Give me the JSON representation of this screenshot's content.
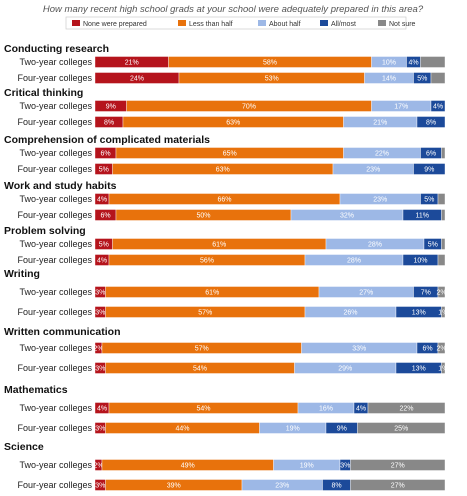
{
  "chart_data": {
    "type": "bar",
    "orientation": "horizontal",
    "stacked": true,
    "title": "How many recent high school grads at your school were adequately prepared in this area?",
    "legend": {
      "placement": "top",
      "entries": [
        {
          "name": "None were prepared",
          "color": "#b5141c"
        },
        {
          "name": "Less than half",
          "color": "#e8720c"
        },
        {
          "name": "About half",
          "color": "#9db8e6"
        },
        {
          "name": "All/most",
          "color": "#1c4a9a"
        },
        {
          "name": "Not sure",
          "color": "#888888"
        }
      ]
    },
    "xlim": [
      0,
      100
    ],
    "grid": false,
    "groups": [
      {
        "name": "Conducting research",
        "rows": [
          {
            "label": "Two-year colleges",
            "values": [
              21,
              58,
              10,
              4,
              7
            ],
            "labels": [
              "21%",
              "58%",
              "10%",
              "4%",
              ""
            ]
          },
          {
            "label": "Four-year colleges",
            "values": [
              24,
              53,
              14,
              5,
              4
            ],
            "labels": [
              "24%",
              "53%",
              "14%",
              "5%",
              ""
            ]
          }
        ]
      },
      {
        "name": "Critical thinking",
        "rows": [
          {
            "label": "Two-year colleges",
            "values": [
              9,
              70,
              17,
              4,
              0
            ],
            "labels": [
              "9%",
              "70%",
              "17%",
              "4%",
              ""
            ]
          },
          {
            "label": "Four-year colleges",
            "values": [
              8,
              63,
              21,
              8,
              0
            ],
            "labels": [
              "8%",
              "63%",
              "21%",
              "8%",
              ""
            ]
          }
        ]
      },
      {
        "name": "Comprehension of complicated materials",
        "rows": [
          {
            "label": "Two-year colleges",
            "values": [
              6,
              65,
              22,
              6,
              1
            ],
            "labels": [
              "6%",
              "65%",
              "22%",
              "6%",
              ""
            ]
          },
          {
            "label": "Four-year colleges",
            "values": [
              5,
              63,
              23,
              9,
              0
            ],
            "labels": [
              "5%",
              "63%",
              "23%",
              "9%",
              ""
            ]
          }
        ]
      },
      {
        "name": "Work and study habits",
        "rows": [
          {
            "label": "Two-year colleges",
            "values": [
              4,
              66,
              23,
              5,
              2
            ],
            "labels": [
              "4%",
              "66%",
              "23%",
              "5%",
              ""
            ]
          },
          {
            "label": "Four-year colleges",
            "values": [
              6,
              50,
              32,
              11,
              1
            ],
            "labels": [
              "6%",
              "50%",
              "32%",
              "11%",
              ""
            ]
          }
        ]
      },
      {
        "name": "Problem solving",
        "rows": [
          {
            "label": "Two-year colleges",
            "values": [
              5,
              61,
              28,
              5,
              1
            ],
            "labels": [
              "5%",
              "61%",
              "28%",
              "5%",
              ""
            ]
          },
          {
            "label": "Four-year colleges",
            "values": [
              4,
              56,
              28,
              10,
              2
            ],
            "labels": [
              "4%",
              "56%",
              "28%",
              "10%",
              ""
            ]
          }
        ]
      },
      {
        "name": "Writing",
        "rows": [
          {
            "label": "Two-year colleges",
            "values": [
              3,
              61,
              27,
              7,
              2
            ],
            "labels": [
              "3%",
              "61%",
              "27%",
              "7%",
              "2%"
            ]
          },
          {
            "label": "Four-year colleges",
            "values": [
              3,
              57,
              26,
              13,
              1
            ],
            "labels": [
              "3%",
              "57%",
              "26%",
              "13%",
              "1%"
            ]
          }
        ]
      },
      {
        "name": "Written communication",
        "rows": [
          {
            "label": "Two-year colleges",
            "values": [
              2,
              57,
              33,
              6,
              2
            ],
            "labels": [
              "2%",
              "57%",
              "33%",
              "6%",
              "2%"
            ]
          },
          {
            "label": "Four-year colleges",
            "values": [
              3,
              54,
              29,
              13,
              1
            ],
            "labels": [
              "3%",
              "54%",
              "29%",
              "13%",
              "1%"
            ]
          }
        ]
      },
      {
        "name": "Mathematics",
        "rows": [
          {
            "label": "Two-year colleges",
            "values": [
              4,
              54,
              16,
              4,
              22
            ],
            "labels": [
              "4%",
              "54%",
              "16%",
              "4%",
              "22%"
            ]
          },
          {
            "label": "Four-year colleges",
            "values": [
              3,
              44,
              19,
              9,
              25
            ],
            "labels": [
              "3%",
              "44%",
              "19%",
              "9%",
              "25%"
            ]
          }
        ]
      },
      {
        "name": "Science",
        "rows": [
          {
            "label": "Two-year colleges",
            "values": [
              2,
              49,
              19,
              3,
              27
            ],
            "labels": [
              "2%",
              "49%",
              "19%",
              "3%",
              "27%"
            ]
          },
          {
            "label": "Four-year colleges",
            "values": [
              3,
              39,
              23,
              8,
              27
            ],
            "labels": [
              "3%",
              "39%",
              "23%",
              "8%",
              "27%"
            ]
          }
        ]
      }
    ]
  }
}
